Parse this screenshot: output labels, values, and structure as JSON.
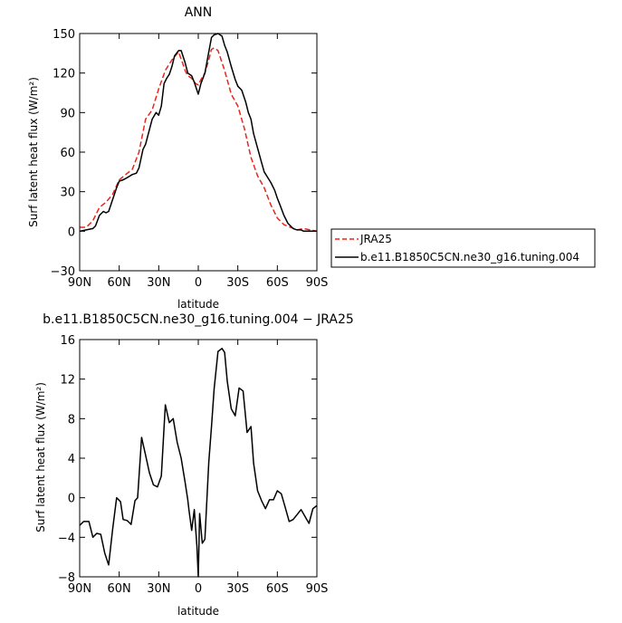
{
  "chart_data": [
    {
      "type": "line",
      "title": "ANN",
      "xlabel": "latitude",
      "ylabel": "Surf latent heat flux (W/m²)",
      "x_direction": "north-to-south",
      "xlim": [
        90,
        -90
      ],
      "ylim": [
        -30,
        150
      ],
      "xticks": [
        90,
        60,
        30,
        0,
        -30,
        -60,
        -90
      ],
      "xtick_labels": [
        "90N",
        "60N",
        "30N",
        "0",
        "30S",
        "60S",
        "90S"
      ],
      "yticks": [
        -30,
        0,
        30,
        60,
        90,
        120,
        150
      ],
      "ytick_labels": [
        "−30",
        "0",
        "30",
        "60",
        "90",
        "120",
        "150"
      ],
      "legend": {
        "placement": "right"
      },
      "series": [
        {
          "name": "JRA25",
          "color": "#e8261c",
          "dash": "dashed",
          "x": [
            90,
            85,
            80,
            75,
            70,
            65,
            60,
            55,
            50,
            45,
            40,
            35,
            30,
            25,
            20,
            15,
            12,
            10,
            8,
            5,
            2,
            0,
            -2,
            -5,
            -8,
            -10,
            -12,
            -15,
            -20,
            -25,
            -30,
            -35,
            -40,
            -45,
            -50,
            -55,
            -60,
            -65,
            -70,
            -75,
            -80,
            -85,
            -90
          ],
          "values": [
            3,
            3,
            8,
            18,
            22,
            28,
            39,
            43,
            47,
            60,
            85,
            92,
            108,
            122,
            130,
            136,
            128,
            122,
            118,
            116,
            112,
            111,
            115,
            120,
            130,
            138,
            139,
            137,
            122,
            104,
            95,
            78,
            56,
            42,
            33,
            20,
            10,
            5,
            3,
            1,
            2,
            1,
            0
          ]
        },
        {
          "name": "b.e11.B1850C5CN.ne30_g16.tuning.004",
          "color": "#000000",
          "dash": "solid",
          "x": [
            90,
            85,
            80,
            78,
            75,
            72,
            70,
            68,
            65,
            62,
            60,
            57,
            55,
            50,
            47,
            45,
            42,
            40,
            35,
            32,
            30,
            28,
            26,
            24,
            22,
            20,
            18,
            15,
            13,
            10,
            8,
            5,
            3,
            0,
            -2,
            -5,
            -8,
            -10,
            -12,
            -15,
            -18,
            -20,
            -22,
            -25,
            -28,
            -30,
            -33,
            -36,
            -38,
            -40,
            -42,
            -45,
            -48,
            -50,
            -55,
            -58,
            -60,
            -62,
            -65,
            -68,
            -70,
            -72,
            -75,
            -78,
            -80,
            -85,
            -90
          ],
          "values": [
            0,
            1,
            2,
            4,
            12,
            15,
            14,
            15,
            24,
            33,
            38,
            39,
            40,
            43,
            44,
            48,
            62,
            66,
            85,
            90,
            88,
            95,
            112,
            116,
            119,
            125,
            133,
            137,
            137,
            128,
            120,
            118,
            113,
            104,
            112,
            120,
            136,
            147,
            149,
            150,
            148,
            141,
            136,
            125,
            115,
            110,
            107,
            98,
            90,
            85,
            74,
            63,
            52,
            45,
            37,
            31,
            25,
            20,
            12,
            6,
            4,
            2,
            1,
            1,
            0,
            0,
            0
          ]
        }
      ]
    },
    {
      "type": "line",
      "title": "b.e11.B1850C5CN.ne30_g16.tuning.004 − JRA25",
      "xlabel": "latitude",
      "ylabel": "Surf latent heat flux (W/m²)",
      "x_direction": "north-to-south",
      "xlim": [
        90,
        -90
      ],
      "ylim": [
        -8,
        16
      ],
      "xticks": [
        90,
        60,
        30,
        0,
        -30,
        -60,
        -90
      ],
      "xtick_labels": [
        "90N",
        "60N",
        "30N",
        "0",
        "30S",
        "60S",
        "90S"
      ],
      "yticks": [
        -8,
        -4,
        0,
        4,
        8,
        12,
        16
      ],
      "ytick_labels": [
        "−8",
        "−4",
        "0",
        "4",
        "8",
        "12",
        "16"
      ],
      "series": [
        {
          "color": "#000000",
          "dash": "solid",
          "x": [
            90,
            87,
            83,
            80,
            77,
            74,
            71,
            68,
            65,
            62,
            59,
            57,
            54,
            51,
            48,
            46,
            43,
            40,
            37,
            34,
            31,
            28,
            25,
            22,
            19,
            16,
            13,
            10,
            8,
            7,
            5,
            3,
            1,
            0,
            -1,
            -3,
            -5,
            -8,
            -10,
            -12,
            -15,
            -18,
            -20,
            -22,
            -25,
            -28,
            -31,
            -34,
            -37,
            -40,
            -42,
            -45,
            -48,
            -51,
            -54,
            -57,
            -60,
            -63,
            -66,
            -69,
            -72,
            -75,
            -78,
            -81,
            -84,
            -87,
            -90
          ],
          "values": [
            -2.8,
            -2.4,
            -2.4,
            -4.0,
            -3.6,
            -3.7,
            -5.6,
            -6.8,
            -3.2,
            0.0,
            -0.4,
            -2.2,
            -2.3,
            -2.7,
            -0.3,
            0.0,
            6.1,
            4.3,
            2.5,
            1.3,
            1.1,
            2.2,
            9.4,
            7.6,
            8.0,
            5.6,
            4.0,
            1.6,
            -0.2,
            -1.3,
            -3.3,
            -1.2,
            -4.9,
            -8.0,
            -1.6,
            -4.6,
            -4.2,
            3.6,
            7.2,
            11.0,
            14.8,
            15.1,
            14.7,
            11.8,
            9.0,
            8.3,
            11.1,
            10.8,
            6.6,
            7.2,
            3.5,
            0.7,
            -0.3,
            -1.1,
            -0.2,
            -0.2,
            0.7,
            0.4,
            -1.0,
            -2.4,
            -2.2,
            -1.7,
            -1.2,
            -1.9,
            -2.6,
            -1.1,
            -0.8
          ]
        }
      ]
    }
  ]
}
